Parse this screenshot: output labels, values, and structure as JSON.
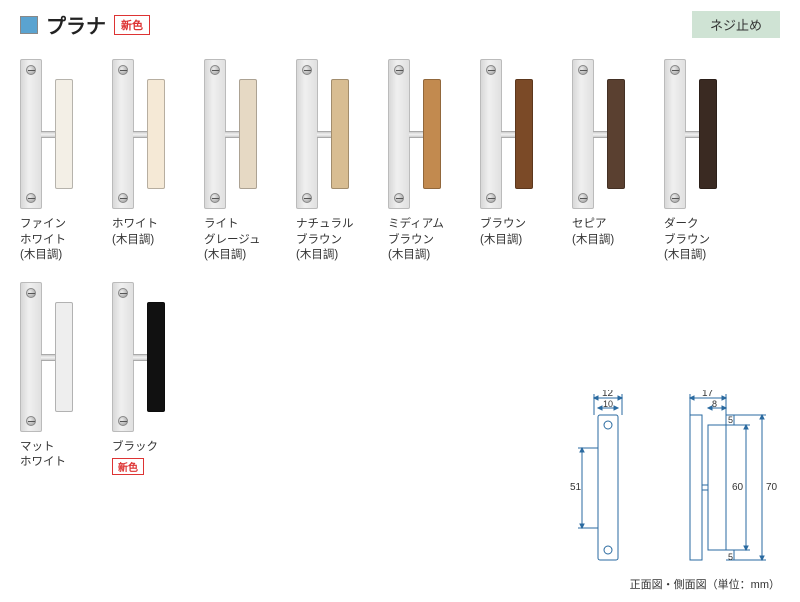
{
  "header": {
    "title": "プラナ",
    "new_badge": "新色",
    "right_tag": "ネジ止め",
    "icon_color": "#5aa3d0",
    "badge_border": "#d33333"
  },
  "swatches": [
    {
      "label": "ファイン\nホワイト\n(木目調)",
      "grip_color": "#f3efe6"
    },
    {
      "label": "ホワイト\n(木目調)",
      "grip_color": "#f5e9d6"
    },
    {
      "label": "ライト\nグレージュ\n(木目調)",
      "grip_color": "#e6d9c4"
    },
    {
      "label": "ナチュラル\nブラウン\n(木目調)",
      "grip_color": "#d8bd92"
    },
    {
      "label": "ミディアム\nブラウン\n(木目調)",
      "grip_color": "#c28a4f"
    },
    {
      "label": "ブラウン\n(木目調)",
      "grip_color": "#7b4a27"
    },
    {
      "label": "セピア\n(木目調)",
      "grip_color": "#5a4030"
    },
    {
      "label": "ダーク\nブラウン\n(木目調)",
      "grip_color": "#3a2a22"
    },
    {
      "label": "マット\nホワイト",
      "grip_color": "#eeeeee"
    },
    {
      "label": "ブラック",
      "grip_color": "#111111",
      "badge": "新色"
    }
  ],
  "diagram": {
    "caption": "正面図・側面図（単位：mm）",
    "front": {
      "w_outer": "12",
      "w_inner": "10",
      "h_center": "51"
    },
    "side": {
      "w_outer": "17",
      "w_inner": "8",
      "h_total": "70",
      "h_grip": "60",
      "gap_top": "5",
      "gap_bot": "5"
    }
  }
}
